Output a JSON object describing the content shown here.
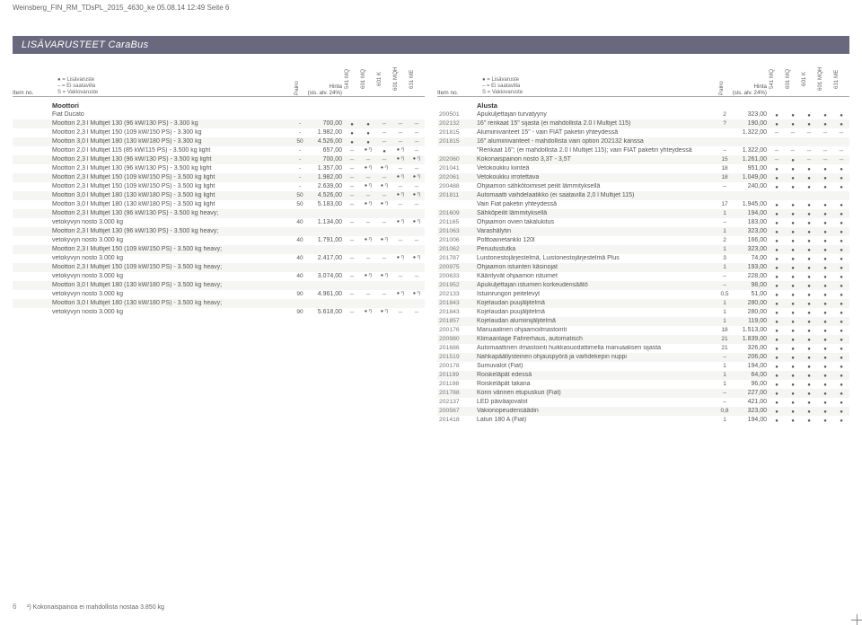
{
  "header_path": "Weinsberg_FIN_RM_TDsPL_2015_4630_ke 05.08.14 12:49 Seite 6",
  "title": "LISÄVARUSTEET CaraBus",
  "footnote": "²) Kokonaispainoa ei mahdollista nostaa 3.850 kg",
  "pagenum": "6",
  "colheader": {
    "item": "Item no.",
    "legend": "● = Lisävaruste\n– = Ei saatavilla\nS = Vakiovaruste",
    "paino": "Paino",
    "price": "Hinta\n(sis. alv. 24%)",
    "marks": [
      "541 MQ",
      "601 MQ",
      "601 K",
      "601 MQH",
      "631 ME"
    ]
  },
  "left": {
    "sections": [
      {
        "title": "Moottori",
        "rows": [
          {
            "id": "",
            "desc": "Fiat Ducato",
            "p": "",
            "pr": "",
            "m": [
              "",
              "",
              "",
              "",
              ""
            ]
          },
          {
            "id": "",
            "desc": "Moottori 2,3 l Multijet 130 (96 kW/130 PS) - 3.300 kg",
            "p": "-",
            "pr": "700,00",
            "m": [
              "●",
              "●",
              "-",
              "-",
              "-"
            ]
          },
          {
            "id": "",
            "desc": "Moottori 2,3 l Multijet 150 (109 kW/150 PS) - 3.300 kg",
            "p": "-",
            "pr": "1.982,00",
            "m": [
              "●",
              "●",
              "-",
              "-",
              "-"
            ]
          },
          {
            "id": "",
            "desc": "Moottori 3,0 l Multijet 180 (130 kW/180 PS) - 3.300 kg",
            "p": "50",
            "pr": "4.526,00",
            "m": [
              "●",
              "●",
              "-",
              "-",
              "-"
            ]
          },
          {
            "id": "",
            "desc": "Moottori 2,0 l Multijet 115 (85 kW/115 PS) - 3.500 kg light",
            "p": "-",
            "pr": "657,00",
            "m": [
              "-",
              "● ²)",
              "●",
              "● ²)",
              "-"
            ]
          },
          {
            "id": "",
            "desc": "Moottori 2,3 l Multijet 130 (96 kW/130 PS) - 3.500 kg light",
            "p": "-",
            "pr": "700,00",
            "m": [
              "-",
              "-",
              "-",
              "● ²)",
              "● ²)"
            ]
          },
          {
            "id": "",
            "desc": "Moottori 2,3 l Multijet 130 (96 kW/130 PS) - 3.500 kg light",
            "p": "-",
            "pr": "1.357,00",
            "m": [
              "-",
              "● ²)",
              "● ²)",
              "-",
              "-"
            ]
          },
          {
            "id": "",
            "desc": "Moottori 2,3 l Multijet 150 (109 kW/150 PS) - 3.500 kg light",
            "p": "-",
            "pr": "1.982,00",
            "m": [
              "-",
              "-",
              "-",
              "● ²)",
              "● ²)"
            ]
          },
          {
            "id": "",
            "desc": "Moottori 2,3 l Multijet 150 (109 kW/150 PS) - 3.500 kg light",
            "p": "-",
            "pr": "2.639,00",
            "m": [
              "-",
              "● ²)",
              "● ²)",
              "-",
              "-"
            ]
          },
          {
            "id": "",
            "desc": "Moottori 3,0 l Multijet 180 (130 kW/180 PS) - 3.500 kg light",
            "p": "50",
            "pr": "4.526,00",
            "m": [
              "-",
              "-",
              "-",
              "● ²)",
              "● ²)"
            ]
          },
          {
            "id": "",
            "desc": "Moottori 3,0 l Multijet 180 (130 kW/180 PS) - 3.500 kg light",
            "p": "50",
            "pr": "5.183,00",
            "m": [
              "-",
              "● ²)",
              "● ²)",
              "-",
              "-"
            ]
          },
          {
            "id": "",
            "desc": "Moottori 2,3 l Multijet 130 (96 kW/130 PS) - 3.500 kg heavy;",
            "p": "",
            "pr": "",
            "m": [
              "",
              "",
              "",
              "",
              ""
            ]
          },
          {
            "id": "",
            "desc": "vetokyvyn nosto 3.000 kg",
            "p": "40",
            "pr": "1.134,00",
            "m": [
              "-",
              "-",
              "-",
              "● ²)",
              "● ²)"
            ]
          },
          {
            "id": "",
            "desc": "Moottori 2,3 l Multijet 130 (96 kW/130 PS) - 3.500 kg heavy;",
            "p": "",
            "pr": "",
            "m": [
              "",
              "",
              "",
              "",
              ""
            ]
          },
          {
            "id": "",
            "desc": "vetokyvyn nosto 3.000 kg",
            "p": "40",
            "pr": "1.791,00",
            "m": [
              "-",
              "● ²)",
              "● ²)",
              "-",
              "-"
            ]
          },
          {
            "id": "",
            "desc": "Moottori 2,3 l Multijet 150 (109 kW/150 PS) - 3.500 kg heavy;",
            "p": "",
            "pr": "",
            "m": [
              "",
              "",
              "",
              "",
              ""
            ]
          },
          {
            "id": "",
            "desc": "vetokyvyn nosto 3.000 kg",
            "p": "40",
            "pr": "2.417,00",
            "m": [
              "-",
              "-",
              "-",
              "● ²)",
              "● ²)"
            ]
          },
          {
            "id": "",
            "desc": "Moottori 2,3 l Multijet 150 (109 kW/150 PS) - 3.500 kg heavy;",
            "p": "",
            "pr": "",
            "m": [
              "",
              "",
              "",
              "",
              ""
            ]
          },
          {
            "id": "",
            "desc": "vetokyvyn nosto 3.000 kg",
            "p": "40",
            "pr": "3.074,00",
            "m": [
              "-",
              "● ²)",
              "● ²)",
              "-",
              "-"
            ]
          },
          {
            "id": "",
            "desc": "Moottori 3,0 l Multijet 180 (130 kW/180 PS) - 3.500 kg heavy;",
            "p": "",
            "pr": "",
            "m": [
              "",
              "",
              "",
              "",
              ""
            ]
          },
          {
            "id": "",
            "desc": "vetokyvyn nosto 3.000 kg",
            "p": "90",
            "pr": "4.961,00",
            "m": [
              "-",
              "-",
              "-",
              "● ²)",
              "● ²)"
            ]
          },
          {
            "id": "",
            "desc": "Moottori 3,0 l Multijet 180 (130 kW/180 PS) - 3.500 kg heavy;",
            "p": "",
            "pr": "",
            "m": [
              "",
              "",
              "",
              "",
              ""
            ]
          },
          {
            "id": "",
            "desc": "vetokyvyn nosto 3.000 kg",
            "p": "90",
            "pr": "5.618,00",
            "m": [
              "-",
              "● ²)",
              "● ²)",
              "-",
              "-"
            ]
          }
        ]
      }
    ]
  },
  "right": {
    "sections": [
      {
        "title": "Alusta",
        "rows": [
          {
            "id": "200501",
            "desc": "Apukuljettajan turvatyyny",
            "p": "2",
            "pr": "323,00",
            "m": [
              "●",
              "●",
              "●",
              "●",
              "●"
            ]
          },
          {
            "id": "202132",
            "desc": "16\" renkaat 15\" sijasta (ei mahdollista 2.0 l Multijet 115)",
            "p": "?",
            "pr": "190,00",
            "m": [
              "●",
              "●",
              "●",
              "●",
              "●"
            ]
          },
          {
            "id": "201815",
            "desc": "Alumiinivanteet 15\" - vain FIAT paketin yhteydessä",
            "p": "",
            "pr": "1.322,00",
            "m": [
              "–",
              "–",
              "–",
              "–",
              "–"
            ]
          },
          {
            "id": "201815",
            "desc": "16\" alumiinivanteet - mahdollista vain option 202132 kanssa",
            "p": "",
            "pr": "",
            "m": [
              "",
              "",
              "",
              "",
              ""
            ]
          },
          {
            "id": "",
            "desc": "\"Renkaat 16\"; (ei mahdollista 2.0 l Multijet 115); vain FIAT paketin yhteydessä",
            "p": "–",
            "pr": "1.322,00",
            "m": [
              "–",
              "–",
              "–",
              "–",
              "–"
            ]
          },
          {
            "id": "202060",
            "desc": "Kokonaispainon nosto 3,3T - 3,5T",
            "p": "15",
            "pr": "1.261,00",
            "m": [
              "–",
              "●",
              "–",
              "–",
              "–"
            ]
          },
          {
            "id": "201041",
            "desc": "Vetokoukku kiinteä",
            "p": "18",
            "pr": "951,00",
            "m": [
              "●",
              "●",
              "●",
              "●",
              "●"
            ]
          },
          {
            "id": "202061",
            "desc": "Vetokoukku irrotettava",
            "p": "18",
            "pr": "1.049,00",
            "m": [
              "●",
              "●",
              "●",
              "●",
              "●"
            ]
          },
          {
            "id": "200488",
            "desc": "Ohjaamon sähkötoimiset peilit lämmityksellä",
            "p": "–",
            "pr": "240,00",
            "m": [
              "●",
              "●",
              "●",
              "●",
              "●"
            ]
          },
          {
            "id": "201811",
            "desc": "Automaatti vaihdelaatikko (ei saatavilla 2,0 l Multijet 115)",
            "p": "",
            "pr": "",
            "m": [
              "",
              "",
              "",
              "",
              ""
            ]
          },
          {
            "id": "",
            "desc": "Vain Fiat paketin yhteydessä",
            "p": "17",
            "pr": "1.945,00",
            "m": [
              "●",
              "●",
              "●",
              "●",
              "●"
            ]
          },
          {
            "id": "201609",
            "desc": "Sähköpeilit lämmityksellä",
            "p": "1",
            "pr": "194,00",
            "m": [
              "●",
              "●",
              "●",
              "●",
              "●"
            ]
          },
          {
            "id": "201165",
            "desc": "Ohjaamon ovien takalukitus",
            "p": "–",
            "pr": "183,00",
            "m": [
              "●",
              "●",
              "●",
              "●",
              "●"
            ]
          },
          {
            "id": "201063",
            "desc": "Varashälytin",
            "p": "1",
            "pr": "323,00",
            "m": [
              "●",
              "●",
              "●",
              "●",
              "●"
            ]
          },
          {
            "id": "201006",
            "desc": "Polttoainetankki 120l",
            "p": "2",
            "pr": "166,00",
            "m": [
              "●",
              "●",
              "●",
              "●",
              "●"
            ]
          },
          {
            "id": "201062",
            "desc": "Peruutustutka",
            "p": "1",
            "pr": "323,00",
            "m": [
              "●",
              "●",
              "●",
              "●",
              "●"
            ]
          },
          {
            "id": "201787",
            "desc": "Luistonestojärjestelmä, Luistonestojärjestelmä Plus",
            "p": "3",
            "pr": "74,00",
            "m": [
              "●",
              "●",
              "●",
              "●",
              "●"
            ]
          },
          {
            "id": "200975",
            "desc": "Ohjaamon istuinten käsinojat",
            "p": "1",
            "pr": "193,00",
            "m": [
              "●",
              "●",
              "●",
              "●",
              "●"
            ]
          },
          {
            "id": "200633",
            "desc": "Kääntyvät ohjaamon istuimet",
            "p": "–",
            "pr": "228,00",
            "m": [
              "●",
              "●",
              "●",
              "●",
              "●"
            ]
          },
          {
            "id": "201952",
            "desc": "Apukuljettajan istuimen korkeudensäätö",
            "p": "–",
            "pr": "98,00",
            "m": [
              "●",
              "●",
              "●",
              "●",
              "●"
            ]
          },
          {
            "id": "202133",
            "desc": "Istuinrungon peitelevyt",
            "p": "0,5",
            "pr": "51,00",
            "m": [
              "●",
              "●",
              "●",
              "●",
              "●"
            ]
          },
          {
            "id": "201843",
            "desc": "Kojelaudan puujäljitelmä",
            "p": "1",
            "pr": "280,00",
            "m": [
              "●",
              "●",
              "●",
              "●",
              "●"
            ]
          },
          {
            "id": "201843",
            "desc": "Kojelaudan puujäljitelmä",
            "p": "1",
            "pr": "280,00",
            "m": [
              "●",
              "●",
              "●",
              "●",
              "●"
            ]
          },
          {
            "id": "201857",
            "desc": "Kojelaudan alumiinijäljitelmä",
            "p": "1",
            "pr": "119,00",
            "m": [
              "●",
              "●",
              "●",
              "●",
              "●"
            ]
          },
          {
            "id": "200176",
            "desc": "Manuaalinen ohjaamoilmastointi",
            "p": "18",
            "pr": "1.513,00",
            "m": [
              "●",
              "●",
              "●",
              "●",
              "●"
            ]
          },
          {
            "id": "200980",
            "desc": "Klimaanlage Fahrerhaus, automatisch",
            "p": "21",
            "pr": "1.839,00",
            "m": [
              "●",
              "●",
              "●",
              "●",
              "●"
            ]
          },
          {
            "id": "201686",
            "desc": "Automaattinen ilmastointi huikkasuodattimella manuaalisen sijasta",
            "p": "21",
            "pr": "326,00",
            "m": [
              "●",
              "●",
              "●",
              "●",
              "●"
            ]
          },
          {
            "id": "201519",
            "desc": "Nahkapäällysteinen ohjauspyörä ja vaihdekepin nuppi",
            "p": "–",
            "pr": "206,00",
            "m": [
              "●",
              "●",
              "●",
              "●",
              "●"
            ]
          },
          {
            "id": "200178",
            "desc": "Sumuvalot (Fiat)",
            "p": "1",
            "pr": "194,00",
            "m": [
              "●",
              "●",
              "●",
              "●",
              "●"
            ]
          },
          {
            "id": "201199",
            "desc": "Roiskeläpät edessä",
            "p": "1",
            "pr": "64,00",
            "m": [
              "●",
              "●",
              "●",
              "●",
              "●"
            ]
          },
          {
            "id": "201198",
            "desc": "Roiskeläpät takana",
            "p": "1",
            "pr": "96,00",
            "m": [
              "●",
              "●",
              "●",
              "●",
              "●"
            ]
          },
          {
            "id": "201788",
            "desc": "Korin värinen etupuskuri (Fiat)",
            "p": "–",
            "pr": "227,00",
            "m": [
              "●",
              "●",
              "●",
              "●",
              "●"
            ]
          },
          {
            "id": "202137",
            "desc": "LED päiväajovalot",
            "p": "–",
            "pr": "421,00",
            "m": [
              "●",
              "●",
              "●",
              "●",
              "●"
            ]
          },
          {
            "id": "200567",
            "desc": "Vakionopeudensäädin",
            "p": "0,8",
            "pr": "323,00",
            "m": [
              "●",
              "●",
              "●",
              "●",
              "●"
            ]
          },
          {
            "id": "201418",
            "desc": "Laturi 180 A (Fiat)",
            "p": "1",
            "pr": "194,00",
            "m": [
              "●",
              "●",
              "●",
              "●",
              "●"
            ]
          }
        ]
      }
    ]
  }
}
